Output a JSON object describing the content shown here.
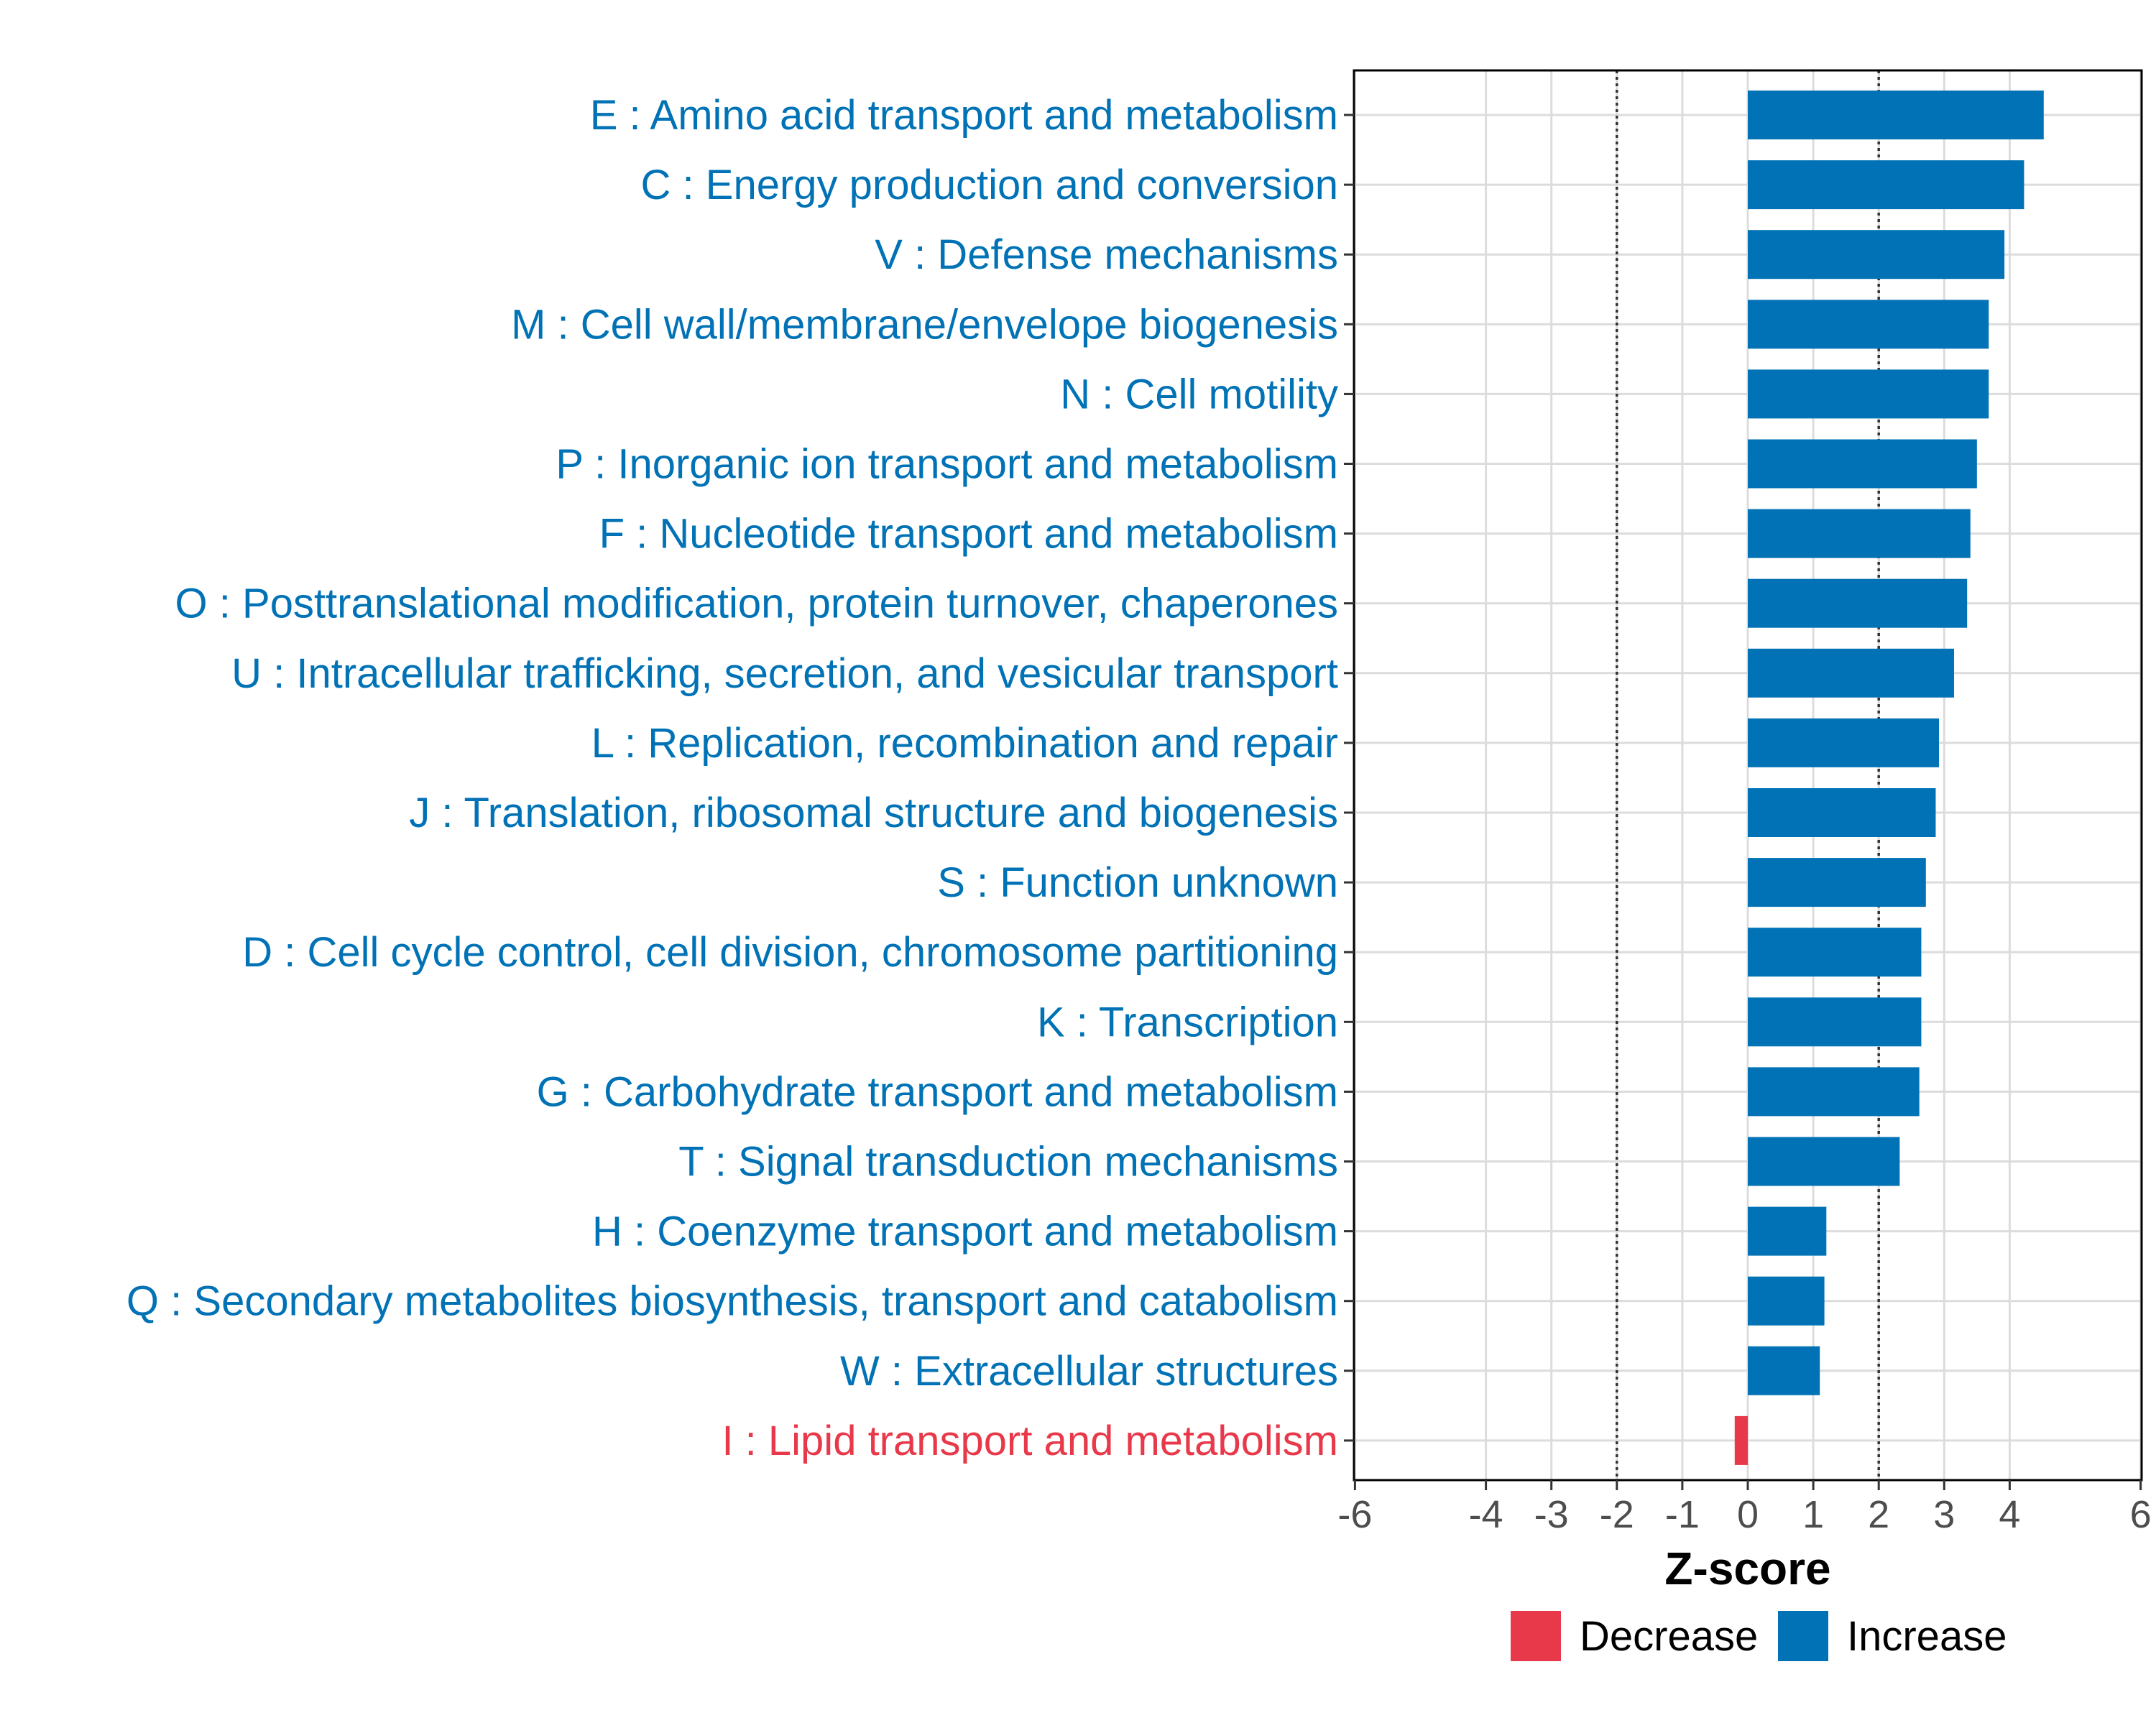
{
  "chart_data": {
    "type": "bar",
    "orientation": "horizontal",
    "xlabel": "Z-score",
    "xlim": [
      -6,
      6
    ],
    "xticks": [
      -6,
      -4,
      -3,
      -2,
      -1,
      0,
      1,
      2,
      3,
      4,
      6
    ],
    "reference_lines": [
      -2,
      2
    ],
    "grid": true,
    "categories": [
      "E : Amino acid transport and metabolism",
      "C : Energy production and conversion",
      "V : Defense mechanisms",
      "M : Cell wall/membrane/envelope biogenesis",
      "N : Cell motility",
      "P : Inorganic ion transport and metabolism",
      "F : Nucleotide transport and metabolism",
      "O : Posttranslational modification, protein turnover, chaperones",
      "U : Intracellular trafficking, secretion, and vesicular transport",
      "L : Replication, recombination and repair",
      "J : Translation, ribosomal structure and biogenesis",
      "S : Function unknown",
      "D : Cell cycle control, cell division, chromosome partitioning",
      "K : Transcription",
      "G : Carbohydrate transport and metabolism",
      "T : Signal transduction mechanisms",
      "H : Coenzyme transport and metabolism",
      "Q : Secondary metabolites biosynthesis, transport and catabolism",
      "W : Extracellular structures",
      "I : Lipid transport and metabolism"
    ],
    "values": [
      4.52,
      4.22,
      3.92,
      3.68,
      3.68,
      3.5,
      3.4,
      3.35,
      3.15,
      2.92,
      2.87,
      2.72,
      2.65,
      2.65,
      2.62,
      2.32,
      1.2,
      1.17,
      1.1,
      -0.2
    ],
    "series": [
      {
        "name": "Decrease",
        "color": "#E8394A"
      },
      {
        "name": "Increase",
        "color": "#0072B5"
      }
    ],
    "legend_position": "bottom"
  }
}
